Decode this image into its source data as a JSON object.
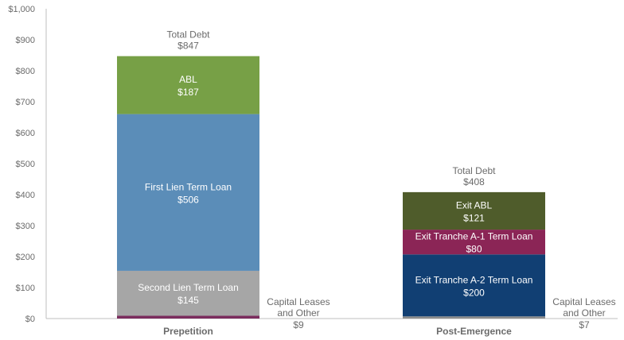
{
  "chart_data": {
    "type": "bar",
    "stacked": true,
    "ylim": [
      0,
      1000
    ],
    "yticks": [
      "$0",
      "$100",
      "$200",
      "$300",
      "$400",
      "$500",
      "$600",
      "$700",
      "$800",
      "$900",
      "$1,000"
    ],
    "tick_values": [
      0,
      100,
      200,
      300,
      400,
      500,
      600,
      700,
      800,
      900,
      1000
    ],
    "grid": false,
    "categories": [
      "Prepetition",
      "Post-Emergence"
    ],
    "bars": [
      {
        "category": "Prepetition",
        "total_label": [
          "Total Debt",
          "$847"
        ],
        "total": 847,
        "segments": [
          {
            "name": "Capital Leases and Other",
            "value": 9,
            "color": "#7b2d5e"
          },
          {
            "name": "Second Lien Term Loan",
            "value": 145,
            "color": "#a6a6a6",
            "label": [
              "Second Lien Term Loan",
              "$145"
            ]
          },
          {
            "name": "First Lien Term Loan",
            "value": 506,
            "color": "#5b8db8",
            "label": [
              "First Lien Term Loan",
              "$506"
            ]
          },
          {
            "name": "ABL",
            "value": 187,
            "color": "#77a046",
            "label": [
              "ABL",
              "$187"
            ]
          }
        ],
        "side_note": [
          "Capital Leases",
          "and Other",
          "$9"
        ]
      },
      {
        "category": "Post-Emergence",
        "total_label": [
          "Total Debt",
          "$408"
        ],
        "total": 408,
        "segments": [
          {
            "name": "Capital Leases and Other",
            "value": 7,
            "color": "#8c8c8c"
          },
          {
            "name": "Exit Tranche A-2 Term Loan",
            "value": 200,
            "color": "#113f73",
            "label": [
              "Exit Tranche A-2 Term Loan",
              "$200"
            ]
          },
          {
            "name": "Exit Tranche A-1 Term Loan",
            "value": 80,
            "color": "#8b2556",
            "label": [
              "Exit Tranche A-1 Term Loan",
              "$80"
            ]
          },
          {
            "name": "Exit ABL",
            "value": 121,
            "color": "#4f5c2b",
            "label": [
              "Exit ABL",
              "$121"
            ]
          }
        ],
        "side_note": [
          "Capital Leases",
          "and Other",
          "$7"
        ]
      }
    ]
  }
}
